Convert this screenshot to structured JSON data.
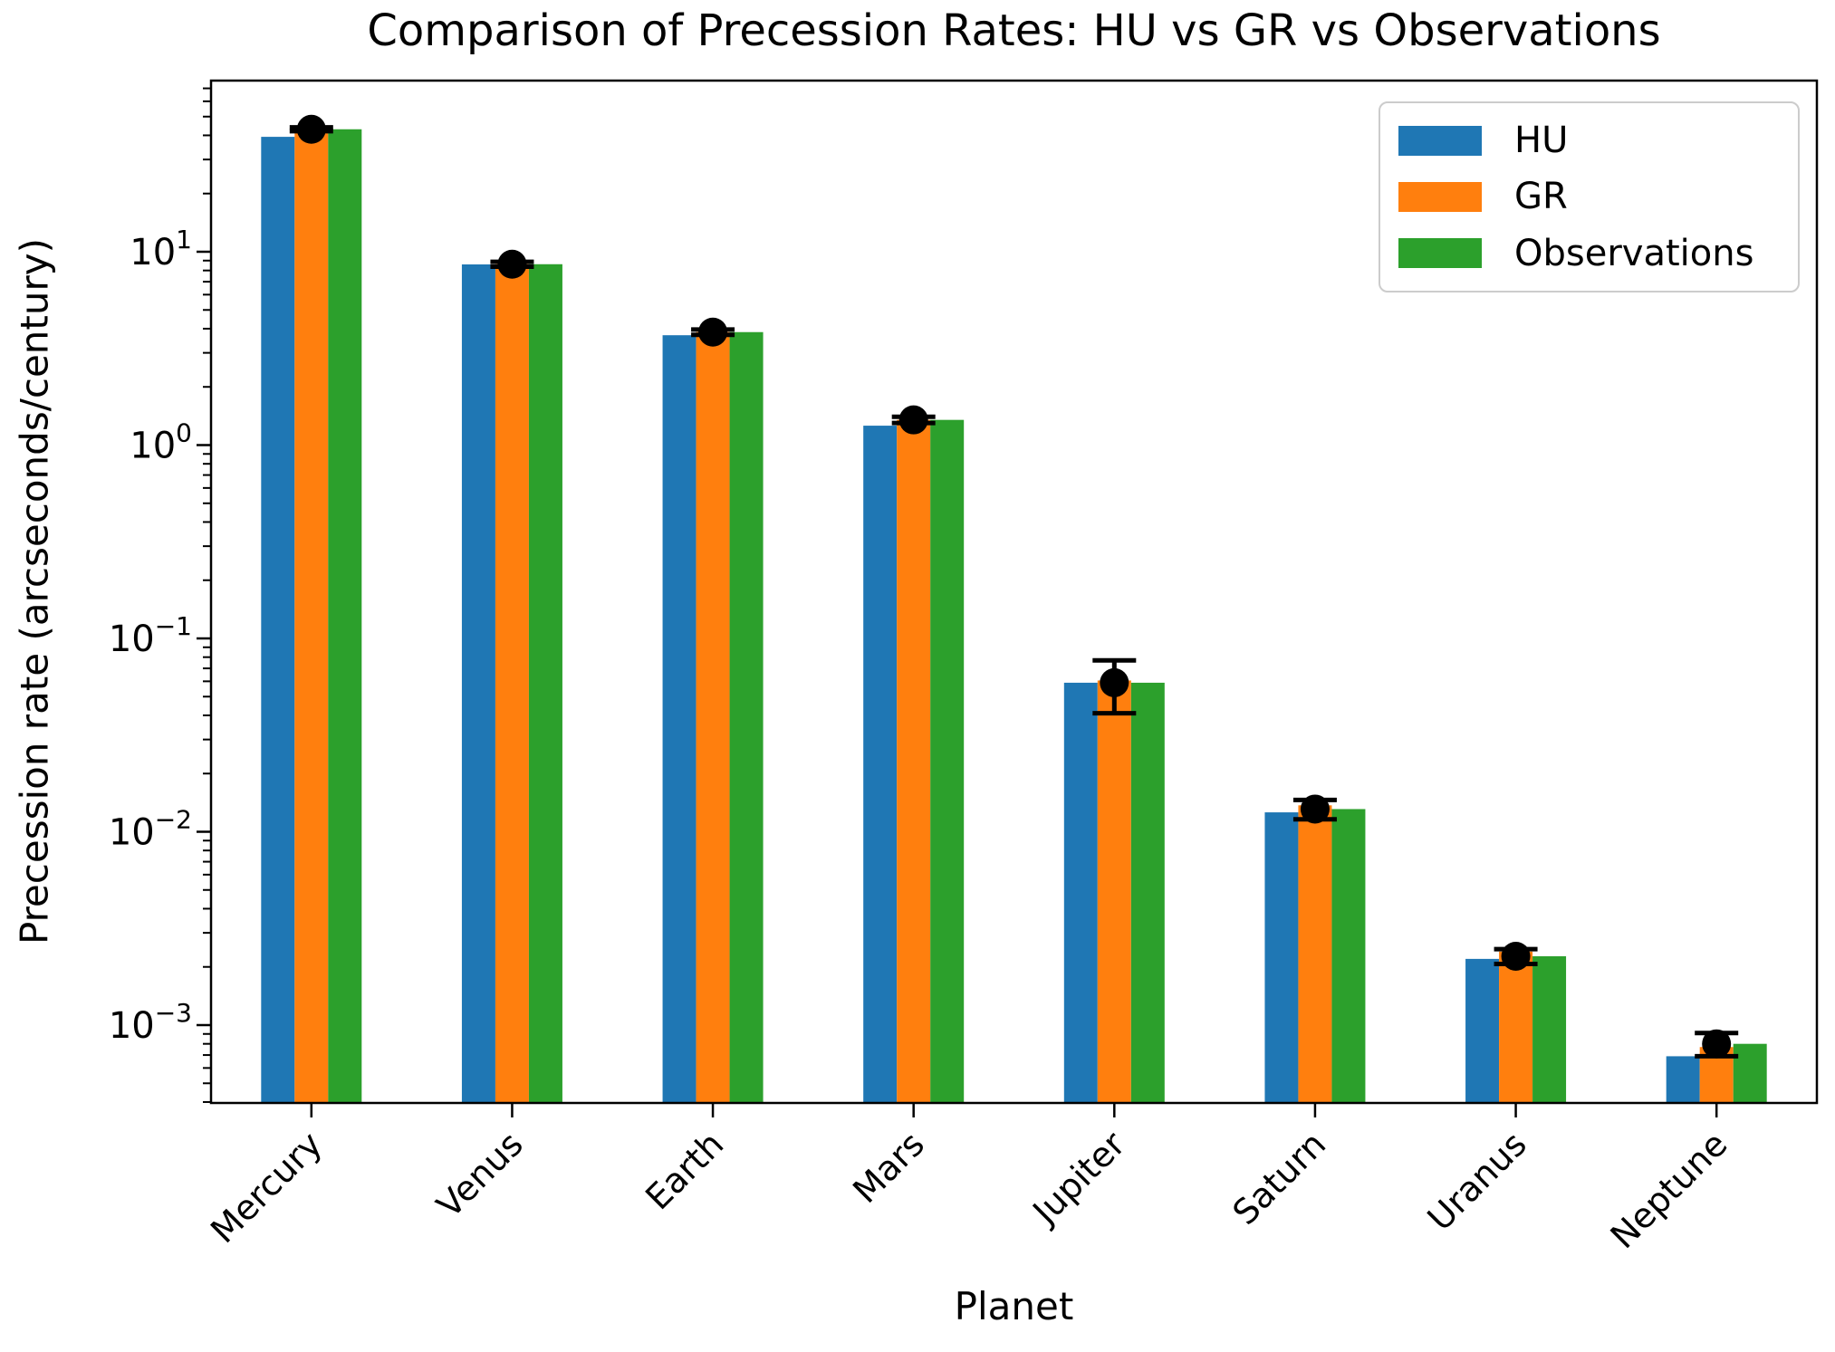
{
  "title": "Comparison of Precession Rates: HU vs GR vs Observations",
  "xlabel": "Planet",
  "ylabel": "Precession rate (arcseconds/century)",
  "legend": {
    "position": "upper right",
    "items": [
      {
        "label": "HU",
        "color": "#1f77b4"
      },
      {
        "label": "GR",
        "color": "#ff7f0e"
      },
      {
        "label": "Observations",
        "color": "#2ca02c"
      }
    ]
  },
  "colors": {
    "hu": "#1f77b4",
    "gr": "#ff7f0e",
    "observations": "#2ca02c",
    "error_bars": "#000000",
    "axes": "#000000",
    "legend_border": "#cccccc"
  },
  "chart_data": {
    "type": "bar",
    "y_scale": "log",
    "grid": false,
    "title": "Comparison of Precession Rates: HU vs GR vs Observations",
    "xlabel": "Planet",
    "ylabel": "Precession rate (arcseconds/century)",
    "categories": [
      "Mercury",
      "Venus",
      "Earth",
      "Mars",
      "Jupiter",
      "Saturn",
      "Uranus",
      "Neptune"
    ],
    "series": [
      {
        "name": "HU",
        "color": "#1f77b4",
        "values": [
          39.3,
          8.6,
          3.7,
          1.26,
          0.059,
          0.0126,
          0.0022,
          0.00069
        ]
      },
      {
        "name": "GR",
        "color": "#ff7f0e",
        "values": [
          43.0,
          8.62,
          3.84,
          1.35,
          0.0606,
          0.0137,
          0.0024,
          0.00077
        ]
      },
      {
        "name": "Observations",
        "color": "#2ca02c",
        "values": [
          43.0,
          8.62,
          3.84,
          1.35,
          0.059,
          0.0131,
          0.00227,
          0.0008
        ]
      }
    ],
    "error_bars": {
      "series": "Observations",
      "marker": "black dot with caps",
      "values": [
        43.0,
        8.62,
        3.84,
        1.35,
        0.059,
        0.0131,
        0.00227,
        0.0008
      ],
      "errors": [
        1.0,
        0.25,
        0.12,
        0.05,
        0.018,
        0.0015,
        0.0002,
        0.00011
      ]
    },
    "y_axis": {
      "tick_exponents": [
        1,
        0,
        -1,
        -2,
        -3
      ],
      "tick_labels": [
        "10¹",
        "10⁰",
        "10⁻¹",
        "10⁻²",
        "10⁻³"
      ],
      "minor_ticks": "log decades 2-9",
      "approx_range": [
        0.0004,
        77
      ]
    },
    "x_axis": {
      "tick_labels": [
        "Mercury",
        "Venus",
        "Earth",
        "Mars",
        "Jupiter",
        "Saturn",
        "Uranus",
        "Neptune"
      ],
      "label_rotation_deg": 45
    },
    "legend_position": "upper right"
  }
}
